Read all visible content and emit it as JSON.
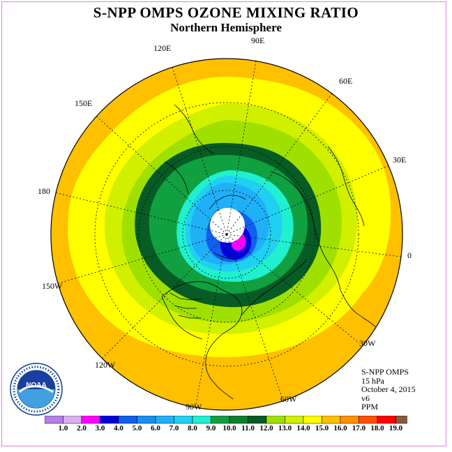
{
  "title": "S-NPP OMPS OZONE MIXING RATIO",
  "subtitle": "Northern Hemisphere",
  "longitude_labels": [
    "90E",
    "60E",
    "30E",
    "0",
    "30W",
    "60W",
    "90W",
    "120W",
    "150W",
    "180",
    "150E",
    "120E"
  ],
  "info": {
    "instrument": "S-NPP OMPS",
    "level": "15 hPa",
    "date": "October 4, 2015",
    "version": "v6",
    "units": "PPM"
  },
  "logo_text": "NOAA",
  "colorbar": {
    "labels": [
      "1.0",
      "2.0",
      "3.0",
      "4.0",
      "5.0",
      "6.0",
      "7.0",
      "8.0",
      "9.0",
      "10.0",
      "11.0",
      "12.0",
      "13.0",
      "14.0",
      "15.0",
      "16.0",
      "17.0",
      "18.0",
      "19.0"
    ],
    "colors": [
      "#b27ee8",
      "#d8b0f0",
      "#ff00ff",
      "#0000dd",
      "#1060f0",
      "#1890f0",
      "#20b0f8",
      "#20d0f0",
      "#20f0d0",
      "#10a040",
      "#0a8030",
      "#065c24",
      "#a0e000",
      "#d0f000",
      "#ffff00",
      "#ffc000",
      "#ff9000",
      "#ff5000",
      "#ff0000",
      "#8b5a3a"
    ]
  },
  "colors": {
    "frame": "#e080e0",
    "ring_outer": "#ffc000",
    "ring_yellow": "#ffff00",
    "ring_lime": "#d0f000",
    "ring_green": "#a0e000",
    "ring_darkgreen": "#065c24",
    "ring_green2": "#10a040",
    "ring_cyan": "#20f0d0",
    "ring_blue": "#20b0f8",
    "no_data": "#ffffff"
  }
}
